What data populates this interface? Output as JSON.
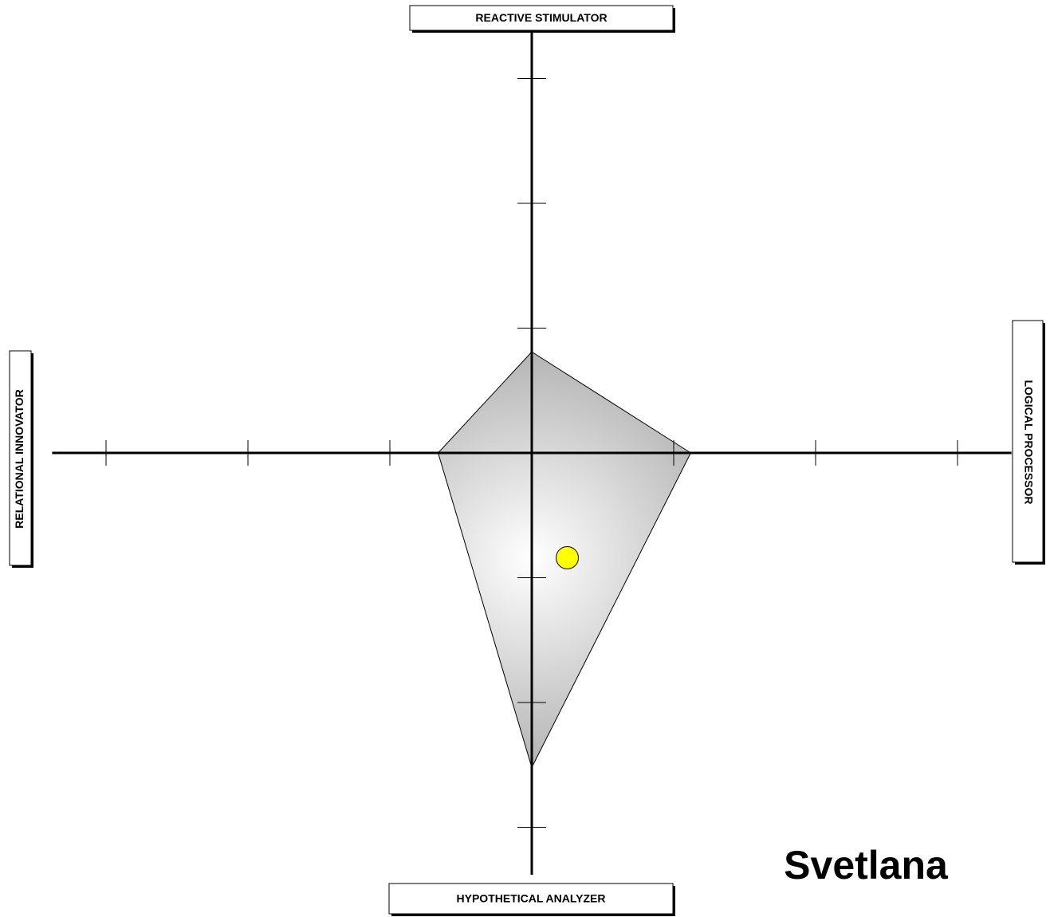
{
  "chart_data": {
    "type": "quadrant",
    "subject": "Svetlana",
    "axes": [
      {
        "label": "REACTIVE STIMULATOR",
        "value": 0.81
      },
      {
        "label": "LOGICAL PROCESSOR",
        "value": 1.12
      },
      {
        "label": "HYPOTHETICAL ANALYZER",
        "value": 2.52
      },
      {
        "label": "RELATIONAL INNOVATOR",
        "value": 0.66
      }
    ],
    "rlim": [
      0,
      3.38
    ],
    "ticks": [
      1,
      2,
      3
    ],
    "fill_color": "#b4b4b4",
    "point": {
      "x": 0.25,
      "y": -0.84,
      "color": "#ffff00"
    }
  }
}
